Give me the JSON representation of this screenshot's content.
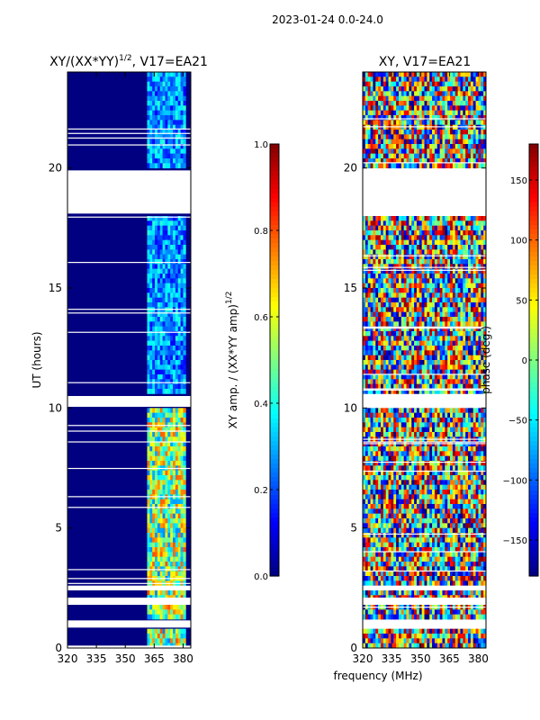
{
  "suptitle": "2023-01-24 0.0-24.0",
  "shared_xlabel": "frequency (MHz)",
  "chart_data": [
    {
      "type": "heatmap",
      "title_main": "XY/(XX*YY)",
      "title_exp": "1/2",
      "title_suffix": ", V17=EA21",
      "xlabel": "",
      "ylabel": "UT (hours)",
      "x_ticks": [
        320,
        335,
        350,
        365,
        380
      ],
      "xlim": [
        320,
        384
      ],
      "y_ticks": [
        0,
        5,
        10,
        15,
        20
      ],
      "ylim": [
        0,
        24
      ],
      "colorbar": {
        "label_main": "XY amp. / (XX*YY amp)",
        "label_exp": "1/2",
        "ticks": [
          "0.0",
          "0.2",
          "0.4",
          "0.6",
          "0.8",
          "1.0"
        ],
        "tick_values": [
          0.0,
          0.2,
          0.4,
          0.6,
          0.8,
          1.0
        ],
        "range": [
          0.0,
          1.0
        ]
      },
      "gaps_hours": [
        [
          0.0,
          0.1
        ],
        [
          0.85,
          1.15
        ],
        [
          1.8,
          2.1
        ],
        [
          2.4,
          2.6
        ],
        [
          10.05,
          10.5
        ],
        [
          18.1,
          19.9
        ]
      ],
      "active_band_mhz": [
        361,
        381
      ],
      "background_value": 0.0
    },
    {
      "type": "heatmap",
      "title_main": "XY, V17=EA21",
      "xlabel": "",
      "ylabel": "",
      "x_ticks": [
        320,
        335,
        350,
        365,
        380
      ],
      "xlim": [
        320,
        384
      ],
      "y_ticks": [
        0,
        5,
        10,
        15,
        20
      ],
      "ylim": [
        0,
        24
      ],
      "colorbar": {
        "label_main": "phase (deg.)",
        "ticks": [
          "150",
          "100",
          "50",
          "0",
          "−50",
          "−100",
          "−150"
        ],
        "tick_values": [
          150,
          100,
          50,
          0,
          -50,
          -100,
          -150
        ],
        "range": [
          -180,
          180
        ]
      },
      "gaps_hours": [
        [
          0.85,
          1.15
        ],
        [
          1.8,
          2.1
        ],
        [
          2.4,
          2.6
        ],
        [
          10.05,
          10.5
        ],
        [
          18.1,
          19.9
        ]
      ],
      "background_value": "random phase"
    }
  ]
}
